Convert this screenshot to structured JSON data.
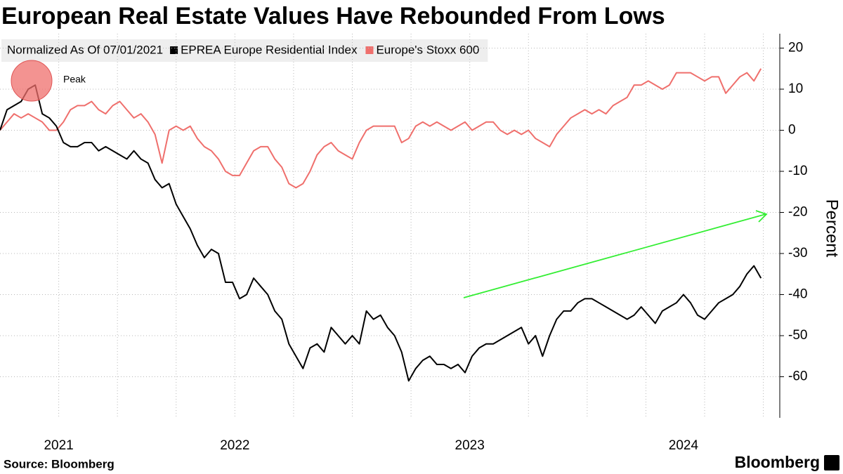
{
  "chart_data": {
    "type": "line",
    "title": "European Real Estate Values Have Rebounded From Lows",
    "legend_title": "Normalized As Of 07/01/2021",
    "ylabel": "Percent",
    "annotation": "Peak",
    "source": "Source: Bloomberg",
    "brand": "Bloomberg",
    "x": [
      2021.5,
      2021.53,
      2021.56,
      2021.59,
      2021.62,
      2021.65,
      2021.68,
      2021.71,
      2021.74,
      2021.77,
      2021.8,
      2021.83,
      2021.86,
      2021.89,
      2021.92,
      2021.95,
      2021.98,
      2022.01,
      2022.04,
      2022.07,
      2022.1,
      2022.13,
      2022.16,
      2022.19,
      2022.22,
      2022.25,
      2022.28,
      2022.31,
      2022.34,
      2022.37,
      2022.4,
      2022.43,
      2022.46,
      2022.49,
      2022.52,
      2022.55,
      2022.58,
      2022.61,
      2022.64,
      2022.67,
      2022.7,
      2022.73,
      2022.76,
      2022.79,
      2022.82,
      2022.85,
      2022.88,
      2022.91,
      2022.94,
      2022.97,
      2023.0,
      2023.03,
      2023.06,
      2023.09,
      2023.12,
      2023.15,
      2023.18,
      2023.21,
      2023.24,
      2023.27,
      2023.3,
      2023.33,
      2023.36,
      2023.39,
      2023.42,
      2023.45,
      2023.48,
      2023.51,
      2023.54,
      2023.57,
      2023.6,
      2023.63,
      2023.66,
      2023.69,
      2023.72,
      2023.75,
      2023.78,
      2023.81,
      2023.84,
      2023.87,
      2023.9,
      2023.93,
      2023.96,
      2023.99,
      2024.02,
      2024.05,
      2024.08,
      2024.11,
      2024.14,
      2024.17,
      2024.2,
      2024.23,
      2024.26,
      2024.29,
      2024.32,
      2024.35,
      2024.38,
      2024.41,
      2024.44,
      2024.47,
      2024.5,
      2024.53,
      2024.56,
      2024.59,
      2024.62,
      2024.65,
      2024.68,
      2024.71,
      2024.74
    ],
    "series": [
      {
        "name": "EPREA Europe Residential Index",
        "color": "#000000",
        "values": [
          0,
          5,
          6,
          7,
          10,
          11,
          4,
          3,
          1,
          -3,
          -4,
          -4,
          -3,
          -3,
          -5,
          -4,
          -5,
          -6,
          -7,
          -5,
          -7,
          -8,
          -12,
          -14,
          -13,
          -18,
          -21,
          -24,
          -28,
          -31,
          -29,
          -30,
          -37,
          -37,
          -41,
          -40,
          -36,
          -38,
          -40,
          -44,
          -46,
          -52,
          -55,
          -58,
          -53,
          -52,
          -54,
          -48,
          -50,
          -52,
          -50,
          -52,
          -44,
          -46,
          -45,
          -48,
          -50,
          -54,
          -61,
          -58,
          -56,
          -55,
          -57,
          -57,
          -58,
          -57,
          -59,
          -55,
          -53,
          -52,
          -52,
          -51,
          -50,
          -49,
          -48,
          -52,
          -50,
          -55,
          -50,
          -46,
          -44,
          -44,
          -42,
          -41,
          -41,
          -42,
          -43,
          -44,
          -45,
          -46,
          -45,
          -43,
          -45,
          -47,
          -44,
          -43,
          -42,
          -40,
          -42,
          -45,
          -46,
          -44,
          -42,
          -41,
          -40,
          -38,
          -35,
          -33,
          -36
        ]
      },
      {
        "name": "Europe's Stoxx 600",
        "color": "#ef6f6c",
        "values": [
          0,
          2,
          4,
          3,
          4,
          3,
          2,
          0,
          0,
          2,
          5,
          6,
          6,
          7,
          5,
          4,
          6,
          7,
          5,
          3,
          4,
          2,
          -1,
          -8,
          0,
          1,
          0,
          1,
          -2,
          -4,
          -5,
          -7,
          -10,
          -11,
          -11,
          -8,
          -5,
          -4,
          -4,
          -7,
          -9,
          -13,
          -14,
          -13,
          -10,
          -6,
          -4,
          -3,
          -5,
          -6,
          -7,
          -3,
          0,
          1,
          1,
          1,
          1,
          -3,
          -2,
          1,
          2,
          1,
          2,
          1,
          0,
          1,
          2,
          0,
          1,
          2,
          2,
          0,
          -1,
          0,
          -1,
          0,
          -2,
          -3,
          -4,
          -1,
          1,
          3,
          4,
          5,
          4,
          5,
          4,
          6,
          7,
          8,
          11,
          11,
          12,
          11,
          10,
          11,
          14,
          14,
          14,
          13,
          12,
          13,
          13,
          9,
          11,
          13,
          14,
          12,
          15
        ]
      }
    ],
    "xlim": [
      2021.5,
      2024.82
    ],
    "xticks": [
      {
        "value": 2021.75,
        "label": "2021"
      },
      {
        "value": 2022.5,
        "label": "2022"
      },
      {
        "value": 2023.5,
        "label": "2023"
      },
      {
        "value": 2024.41,
        "label": "2024"
      }
    ],
    "ylim": [
      -70,
      23.5
    ],
    "yticks": [
      20,
      10,
      0,
      -10,
      -20,
      -30,
      -40,
      -50,
      -60
    ],
    "grid": true,
    "y_axis_side": "right"
  }
}
